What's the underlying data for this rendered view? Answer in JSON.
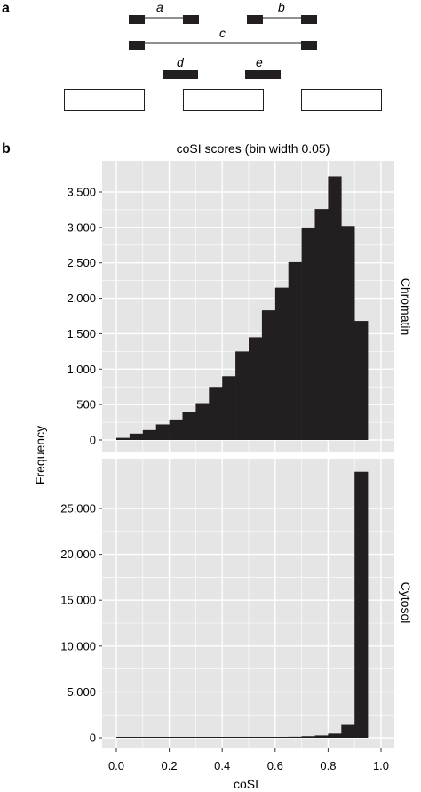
{
  "panel_a": {
    "letter": "a",
    "labels": {
      "a": "a",
      "b": "b",
      "c": "c",
      "d": "d",
      "e": "e"
    }
  },
  "panel_b": {
    "letter": "b"
  },
  "colors": {
    "panel_bg": "#e5e5e5",
    "grid": "#ffffff",
    "bar": "#231f20"
  },
  "chart_data": {
    "type": "bar",
    "title": "coSI scores (bin width 0.05)",
    "xlabel": "coSI",
    "ylabel": "Frequency",
    "x_ticks": [
      "0.0",
      "0.2",
      "0.4",
      "0.6",
      "0.8",
      "1.0"
    ],
    "xlim": [
      0,
      1
    ],
    "bin_width": 0.05,
    "facets": [
      {
        "name": "Chromatin",
        "ylim": [
          0,
          3900
        ],
        "y_ticks": [
          "0",
          "500",
          "1,000",
          "1,500",
          "2,000",
          "2,500",
          "3,000",
          "3,500"
        ],
        "values": [
          30,
          90,
          140,
          220,
          290,
          390,
          520,
          750,
          900,
          1250,
          1450,
          1830,
          2150,
          2510,
          3000,
          3260,
          3720,
          3020,
          1680
        ]
      },
      {
        "name": "Cytosol",
        "ylim": [
          0,
          30000
        ],
        "y_ticks": [
          "0",
          "5,000",
          "10,000",
          "15,000",
          "20,000",
          "25,000"
        ],
        "values": [
          5,
          5,
          5,
          5,
          10,
          10,
          15,
          20,
          25,
          35,
          45,
          60,
          80,
          110,
          170,
          250,
          450,
          1400,
          29000
        ]
      }
    ]
  }
}
